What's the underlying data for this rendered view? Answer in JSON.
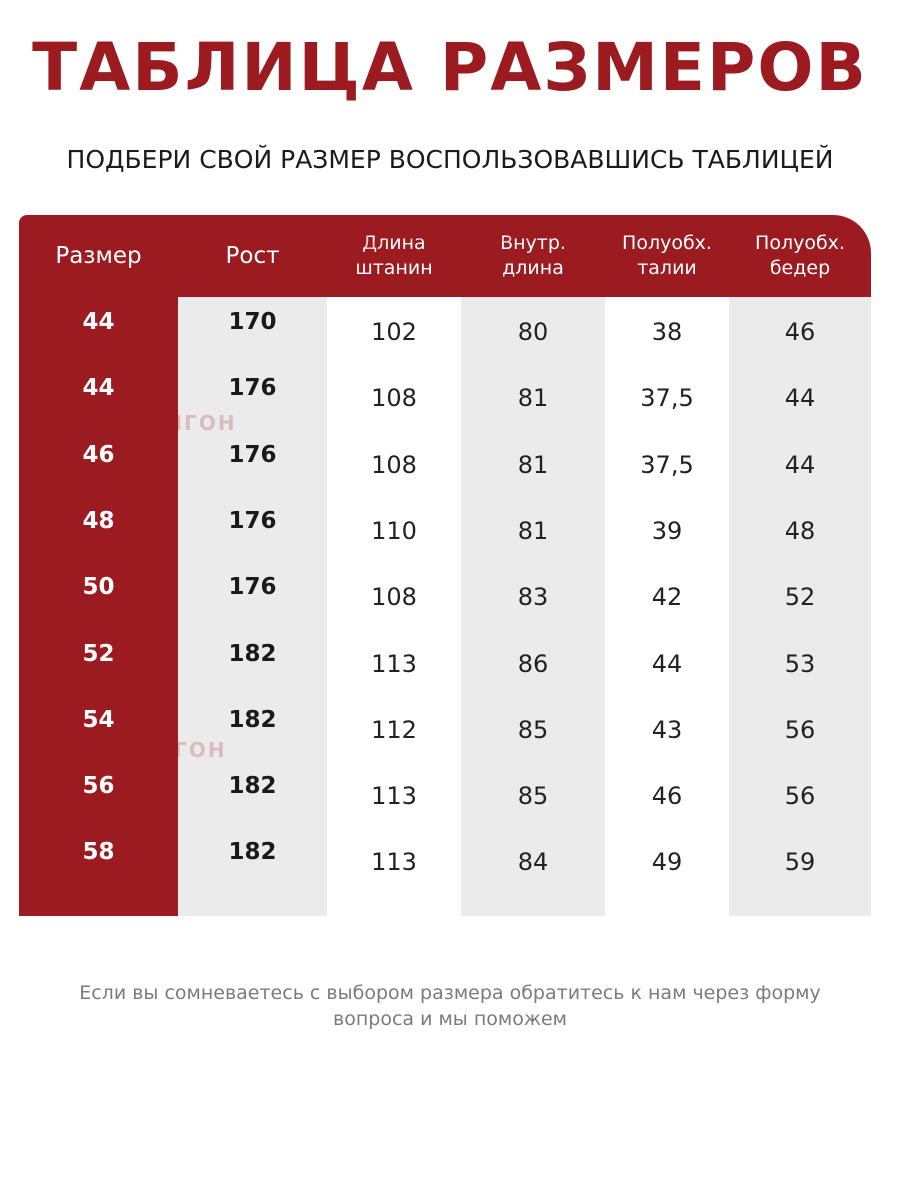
{
  "title": "ТАБЛИЦА РАЗМЕРОВ",
  "subtitle": "ПОДБЕРИ СВОЙ РАЗМЕР ВОСПОЛЬЗОВАВШИСЬ ТАБЛИЦЕЙ",
  "brand": {
    "watermark": "ПОЛИГОН",
    "logo_icon": "polygon-triangle-icon"
  },
  "colors": {
    "accent": "#9c1b20",
    "title_color": "#9c1b20",
    "gray_column": "#ebebeb",
    "white_column": "#ffffff"
  },
  "table": {
    "headers": [
      "Размер",
      "Рост",
      "Длина\nштанин",
      "Внутр.\nдлина",
      "Полуобх.\nталии",
      "Полуобх.\nбедер"
    ],
    "rows": [
      [
        "44",
        "170",
        "102",
        "80",
        "38",
        "46"
      ],
      [
        "44",
        "176",
        "108",
        "81",
        "37,5",
        "44"
      ],
      [
        "46",
        "176",
        "108",
        "81",
        "37,5",
        "44"
      ],
      [
        "48",
        "176",
        "110",
        "81",
        "39",
        "48"
      ],
      [
        "50",
        "176",
        "108",
        "83",
        "42",
        "52"
      ],
      [
        "52",
        "182",
        "113",
        "86",
        "44",
        "53"
      ],
      [
        "54",
        "182",
        "112",
        "85",
        "43",
        "56"
      ],
      [
        "56",
        "182",
        "113",
        "85",
        "46",
        "56"
      ],
      [
        "58",
        "182",
        "113",
        "84",
        "49",
        "59"
      ]
    ]
  },
  "footnote": "Если вы сомневаетесь с выбором размера обратитесь к нам через форму\nвопроса и мы поможем"
}
